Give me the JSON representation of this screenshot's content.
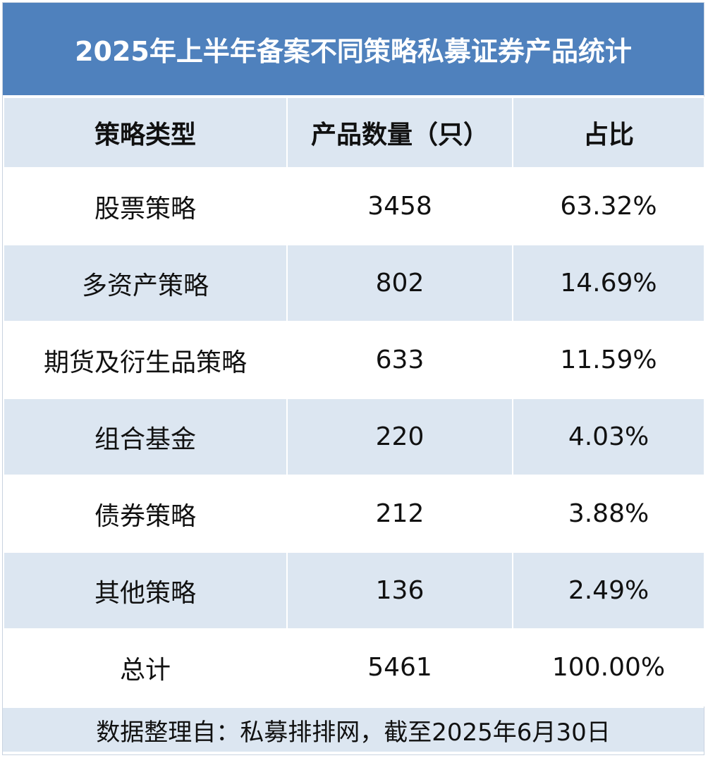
{
  "chart_data": {
    "type": "table",
    "title": "2025年上半年备案不同策略私募证券产品统计",
    "columns": [
      "策略类型",
      "产品数量（只）",
      "占比"
    ],
    "rows": [
      {
        "strategy": "股票策略",
        "count": "3458",
        "share": "63.32%"
      },
      {
        "strategy": "多资产策略",
        "count": "802",
        "share": "14.69%"
      },
      {
        "strategy": "期货及衍生品策略",
        "count": "633",
        "share": "11.59%"
      },
      {
        "strategy": "组合基金",
        "count": "220",
        "share": "4.03%"
      },
      {
        "strategy": "债券策略",
        "count": "212",
        "share": "3.88%"
      },
      {
        "strategy": "其他策略",
        "count": "136",
        "share": "2.49%"
      },
      {
        "strategy": "总计",
        "count": "5461",
        "share": "100.00%"
      }
    ],
    "source_note": "数据整理自：私募排排网，截至2025年6月30日"
  },
  "colors": {
    "header_bg": "#4f81bd",
    "alt_row_bg": "#dce6f1",
    "white_row_bg": "#ffffff"
  }
}
